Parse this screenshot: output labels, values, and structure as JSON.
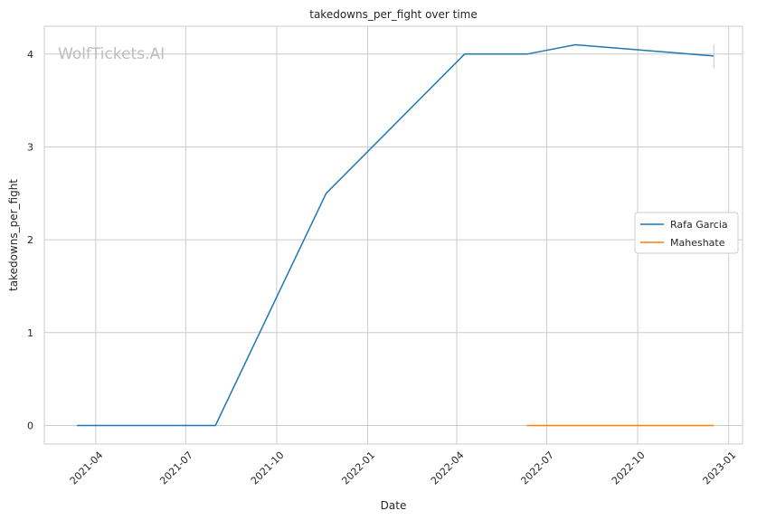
{
  "chart_data": {
    "type": "line",
    "title": "takedowns_per_fight over time",
    "xlabel": "Date",
    "ylabel": "takedowns_per_fight",
    "watermark": "WolfTickets.AI",
    "x_ticks": [
      "2021-04",
      "2021-07",
      "2021-10",
      "2022-01",
      "2022-04",
      "2022-07",
      "2022-10",
      "2023-01"
    ],
    "y_ticks": [
      "0",
      "1",
      "2",
      "3",
      "4"
    ],
    "xlim": [
      "2021-02-08",
      "2023-01-15"
    ],
    "ylim": [
      -0.2,
      4.3
    ],
    "grid": true,
    "legend_position": "center-right",
    "series": [
      {
        "name": "Rafa Garcia",
        "color": "#1f77b4",
        "points": [
          {
            "x": "2021-03-13",
            "y": 0
          },
          {
            "x": "2021-07-31",
            "y": 0
          },
          {
            "x": "2021-11-20",
            "y": 2.5
          },
          {
            "x": "2022-04-09",
            "y": 4.0
          },
          {
            "x": "2022-06-11",
            "y": 4.0
          },
          {
            "x": "2022-07-30",
            "y": 4.1
          },
          {
            "x": "2022-12-17",
            "y": 3.98
          }
        ],
        "error_bar": {
          "x": "2022-12-17",
          "low": 3.85,
          "high": 4.1
        }
      },
      {
        "name": "Maheshate",
        "color": "#ff7f0e",
        "points": [
          {
            "x": "2022-06-11",
            "y": 0
          },
          {
            "x": "2022-12-17",
            "y": 0
          }
        ]
      }
    ]
  }
}
